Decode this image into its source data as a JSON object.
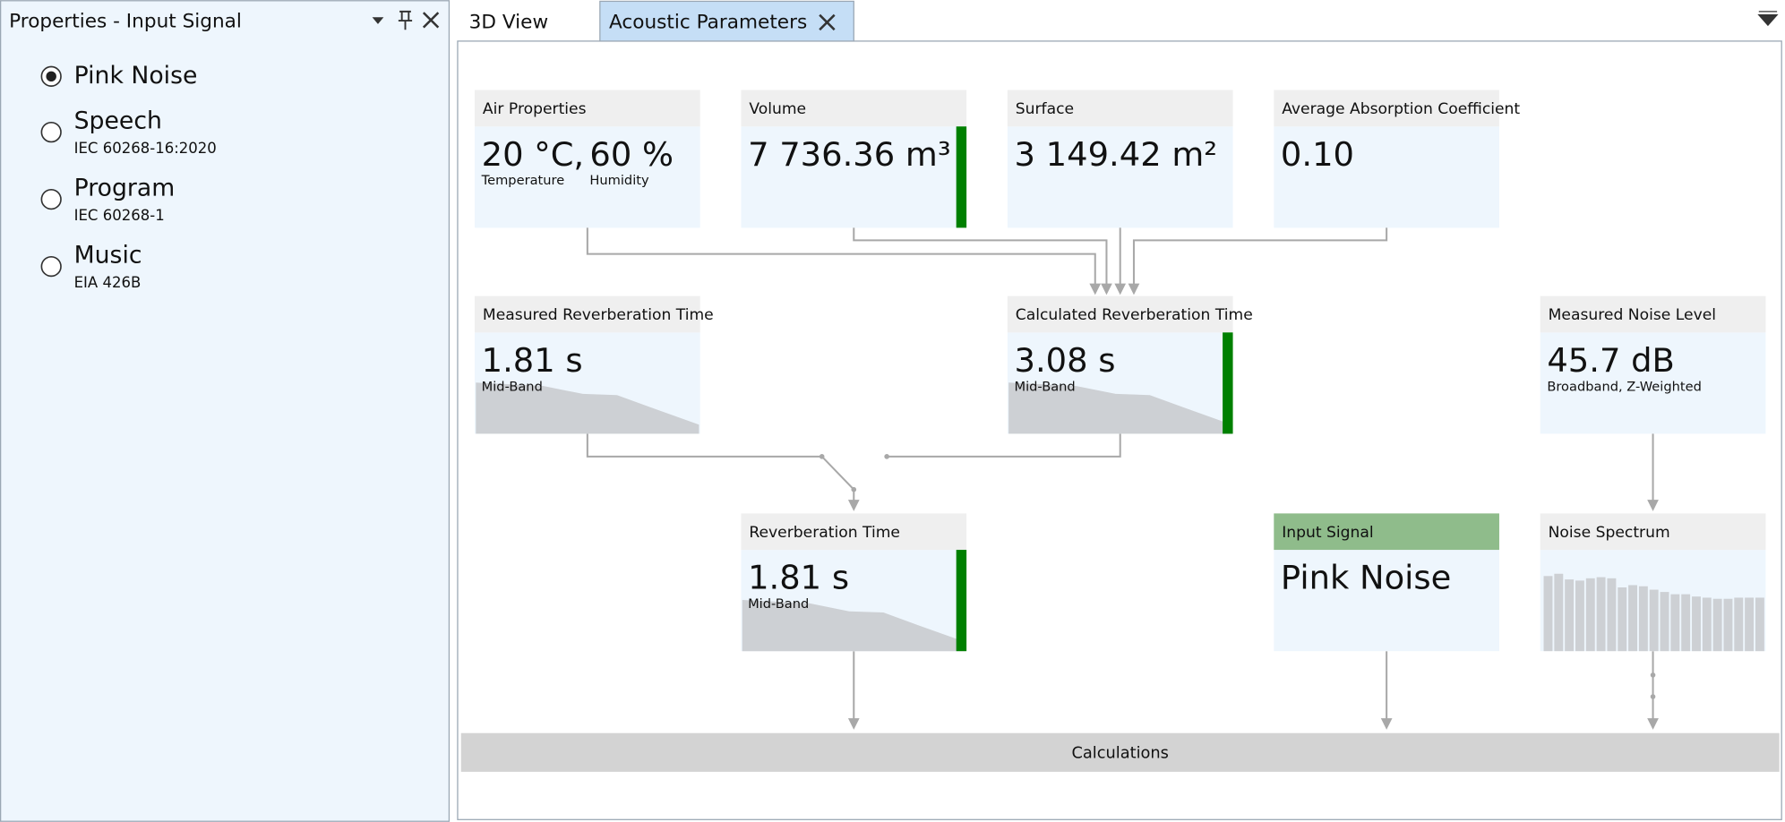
{
  "panel": {
    "title": "Properties - Input Signal",
    "options": [
      {
        "label": "Pink Noise",
        "selected": true
      },
      {
        "label": "Speech",
        "detail": "IEC 60268-16:2020"
      },
      {
        "label": "Program",
        "detail": "IEC 60268-1"
      },
      {
        "label": "Music",
        "detail": "EIA 426B"
      }
    ]
  },
  "tabs": [
    {
      "label": "3D View"
    },
    {
      "label": "Acoustic Parameters",
      "active": true
    }
  ],
  "nodes": [
    {
      "title": "Air Properties",
      "values": [
        {
          "value": "20 °C,",
          "caption": "Temperature"
        },
        {
          "value": "60 %",
          "caption": "Humidity"
        }
      ]
    },
    {
      "title": "Volume",
      "values": [
        {
          "value": "7 736.36 m³"
        }
      ]
    },
    {
      "title": "Surface",
      "values": [
        {
          "value": "3 149.42 m²"
        }
      ]
    },
    {
      "title": "Average Absorption Coefficient",
      "values": [
        {
          "value": "0.10"
        }
      ]
    },
    {
      "title": "Measured Reverberation Time",
      "values": [
        {
          "value": "1.81  s",
          "caption": "Mid-Band"
        }
      ]
    },
    {
      "title": "Calculated Reverberation Time",
      "values": [
        {
          "value": "3.08  s",
          "caption": "Mid-Band"
        }
      ]
    },
    {
      "title": "Measured Noise Level",
      "values": [
        {
          "value": "45.7  dB",
          "caption": "Broadband, Z-Weighted"
        }
      ]
    },
    {
      "title": "Reverberation Time",
      "values": [
        {
          "value": "1.81  s",
          "caption": "Mid-Band"
        }
      ]
    },
    {
      "title": "Input Signal",
      "values": [
        {
          "value": "Pink Noise"
        }
      ]
    },
    {
      "title": "Noise Spectrum"
    }
  ],
  "calculations": "Calculations"
}
